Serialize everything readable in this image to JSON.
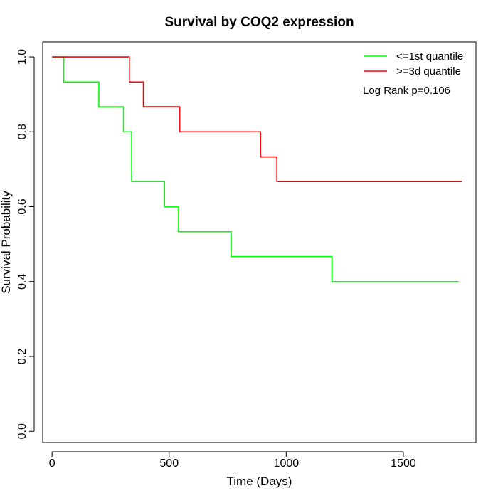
{
  "chart_data": {
    "type": "line",
    "title": "Survival by COQ2 expression",
    "xlabel": "Time (Days)",
    "ylabel": "Survival Probability",
    "xlim": [
      -40,
      1810
    ],
    "ylim": [
      -0.03,
      1.04
    ],
    "xticks": [
      0,
      500,
      1000,
      1500
    ],
    "yticks": [
      0.0,
      0.2,
      0.4,
      0.6,
      0.8,
      1.0
    ],
    "xtick_labels": [
      "0",
      "500",
      "1000",
      "1500"
    ],
    "ytick_labels": [
      "0.0",
      "0.2",
      "0.4",
      "0.6",
      "0.8",
      "1.0"
    ],
    "grid": false,
    "legend_position": "top-right",
    "annotation": "Log Rank p=0.106",
    "series": [
      {
        "name": "<=1st quantile",
        "color": "#00ff00",
        "step": true,
        "x": [
          0,
          50,
          200,
          305,
          340,
          480,
          540,
          765,
          1195,
          1735
        ],
        "y": [
          1.0,
          0.933,
          0.867,
          0.8,
          0.667,
          0.6,
          0.533,
          0.467,
          0.4,
          0.4
        ]
      },
      {
        "name": ">=3d quantile",
        "color": "#ff0000",
        "step": true,
        "x": [
          0,
          330,
          390,
          545,
          890,
          960,
          1750
        ],
        "y": [
          1.0,
          0.933,
          0.867,
          0.8,
          0.733,
          0.667,
          0.667
        ]
      }
    ]
  }
}
